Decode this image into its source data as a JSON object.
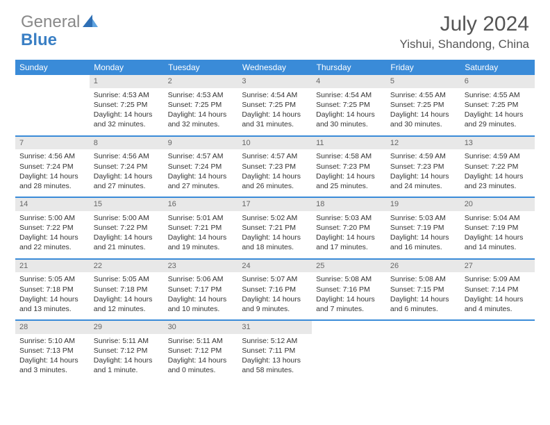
{
  "brand": {
    "part1": "General",
    "part2": "Blue"
  },
  "title": {
    "month": "July 2024",
    "location": "Yishui, Shandong, China"
  },
  "colors": {
    "header_bg": "#3a8bd8",
    "daynum_bg": "#e8e8e8",
    "rule": "#3a8bd8",
    "text": "#333333",
    "muted": "#666666"
  },
  "dow": [
    "Sunday",
    "Monday",
    "Tuesday",
    "Wednesday",
    "Thursday",
    "Friday",
    "Saturday"
  ],
  "cells": [
    {
      "n": "",
      "s": "",
      "ss": "",
      "d": ""
    },
    {
      "n": "1",
      "s": "Sunrise: 4:53 AM",
      "ss": "Sunset: 7:25 PM",
      "d": "Daylight: 14 hours and 32 minutes."
    },
    {
      "n": "2",
      "s": "Sunrise: 4:53 AM",
      "ss": "Sunset: 7:25 PM",
      "d": "Daylight: 14 hours and 32 minutes."
    },
    {
      "n": "3",
      "s": "Sunrise: 4:54 AM",
      "ss": "Sunset: 7:25 PM",
      "d": "Daylight: 14 hours and 31 minutes."
    },
    {
      "n": "4",
      "s": "Sunrise: 4:54 AM",
      "ss": "Sunset: 7:25 PM",
      "d": "Daylight: 14 hours and 30 minutes."
    },
    {
      "n": "5",
      "s": "Sunrise: 4:55 AM",
      "ss": "Sunset: 7:25 PM",
      "d": "Daylight: 14 hours and 30 minutes."
    },
    {
      "n": "6",
      "s": "Sunrise: 4:55 AM",
      "ss": "Sunset: 7:25 PM",
      "d": "Daylight: 14 hours and 29 minutes."
    },
    {
      "n": "7",
      "s": "Sunrise: 4:56 AM",
      "ss": "Sunset: 7:24 PM",
      "d": "Daylight: 14 hours and 28 minutes."
    },
    {
      "n": "8",
      "s": "Sunrise: 4:56 AM",
      "ss": "Sunset: 7:24 PM",
      "d": "Daylight: 14 hours and 27 minutes."
    },
    {
      "n": "9",
      "s": "Sunrise: 4:57 AM",
      "ss": "Sunset: 7:24 PM",
      "d": "Daylight: 14 hours and 27 minutes."
    },
    {
      "n": "10",
      "s": "Sunrise: 4:57 AM",
      "ss": "Sunset: 7:23 PM",
      "d": "Daylight: 14 hours and 26 minutes."
    },
    {
      "n": "11",
      "s": "Sunrise: 4:58 AM",
      "ss": "Sunset: 7:23 PM",
      "d": "Daylight: 14 hours and 25 minutes."
    },
    {
      "n": "12",
      "s": "Sunrise: 4:59 AM",
      "ss": "Sunset: 7:23 PM",
      "d": "Daylight: 14 hours and 24 minutes."
    },
    {
      "n": "13",
      "s": "Sunrise: 4:59 AM",
      "ss": "Sunset: 7:22 PM",
      "d": "Daylight: 14 hours and 23 minutes."
    },
    {
      "n": "14",
      "s": "Sunrise: 5:00 AM",
      "ss": "Sunset: 7:22 PM",
      "d": "Daylight: 14 hours and 22 minutes."
    },
    {
      "n": "15",
      "s": "Sunrise: 5:00 AM",
      "ss": "Sunset: 7:22 PM",
      "d": "Daylight: 14 hours and 21 minutes."
    },
    {
      "n": "16",
      "s": "Sunrise: 5:01 AM",
      "ss": "Sunset: 7:21 PM",
      "d": "Daylight: 14 hours and 19 minutes."
    },
    {
      "n": "17",
      "s": "Sunrise: 5:02 AM",
      "ss": "Sunset: 7:21 PM",
      "d": "Daylight: 14 hours and 18 minutes."
    },
    {
      "n": "18",
      "s": "Sunrise: 5:03 AM",
      "ss": "Sunset: 7:20 PM",
      "d": "Daylight: 14 hours and 17 minutes."
    },
    {
      "n": "19",
      "s": "Sunrise: 5:03 AM",
      "ss": "Sunset: 7:19 PM",
      "d": "Daylight: 14 hours and 16 minutes."
    },
    {
      "n": "20",
      "s": "Sunrise: 5:04 AM",
      "ss": "Sunset: 7:19 PM",
      "d": "Daylight: 14 hours and 14 minutes."
    },
    {
      "n": "21",
      "s": "Sunrise: 5:05 AM",
      "ss": "Sunset: 7:18 PM",
      "d": "Daylight: 14 hours and 13 minutes."
    },
    {
      "n": "22",
      "s": "Sunrise: 5:05 AM",
      "ss": "Sunset: 7:18 PM",
      "d": "Daylight: 14 hours and 12 minutes."
    },
    {
      "n": "23",
      "s": "Sunrise: 5:06 AM",
      "ss": "Sunset: 7:17 PM",
      "d": "Daylight: 14 hours and 10 minutes."
    },
    {
      "n": "24",
      "s": "Sunrise: 5:07 AM",
      "ss": "Sunset: 7:16 PM",
      "d": "Daylight: 14 hours and 9 minutes."
    },
    {
      "n": "25",
      "s": "Sunrise: 5:08 AM",
      "ss": "Sunset: 7:16 PM",
      "d": "Daylight: 14 hours and 7 minutes."
    },
    {
      "n": "26",
      "s": "Sunrise: 5:08 AM",
      "ss": "Sunset: 7:15 PM",
      "d": "Daylight: 14 hours and 6 minutes."
    },
    {
      "n": "27",
      "s": "Sunrise: 5:09 AM",
      "ss": "Sunset: 7:14 PM",
      "d": "Daylight: 14 hours and 4 minutes."
    },
    {
      "n": "28",
      "s": "Sunrise: 5:10 AM",
      "ss": "Sunset: 7:13 PM",
      "d": "Daylight: 14 hours and 3 minutes."
    },
    {
      "n": "29",
      "s": "Sunrise: 5:11 AM",
      "ss": "Sunset: 7:12 PM",
      "d": "Daylight: 14 hours and 1 minute."
    },
    {
      "n": "30",
      "s": "Sunrise: 5:11 AM",
      "ss": "Sunset: 7:12 PM",
      "d": "Daylight: 14 hours and 0 minutes."
    },
    {
      "n": "31",
      "s": "Sunrise: 5:12 AM",
      "ss": "Sunset: 7:11 PM",
      "d": "Daylight: 13 hours and 58 minutes."
    },
    {
      "n": "",
      "s": "",
      "ss": "",
      "d": ""
    },
    {
      "n": "",
      "s": "",
      "ss": "",
      "d": ""
    },
    {
      "n": "",
      "s": "",
      "ss": "",
      "d": ""
    }
  ]
}
